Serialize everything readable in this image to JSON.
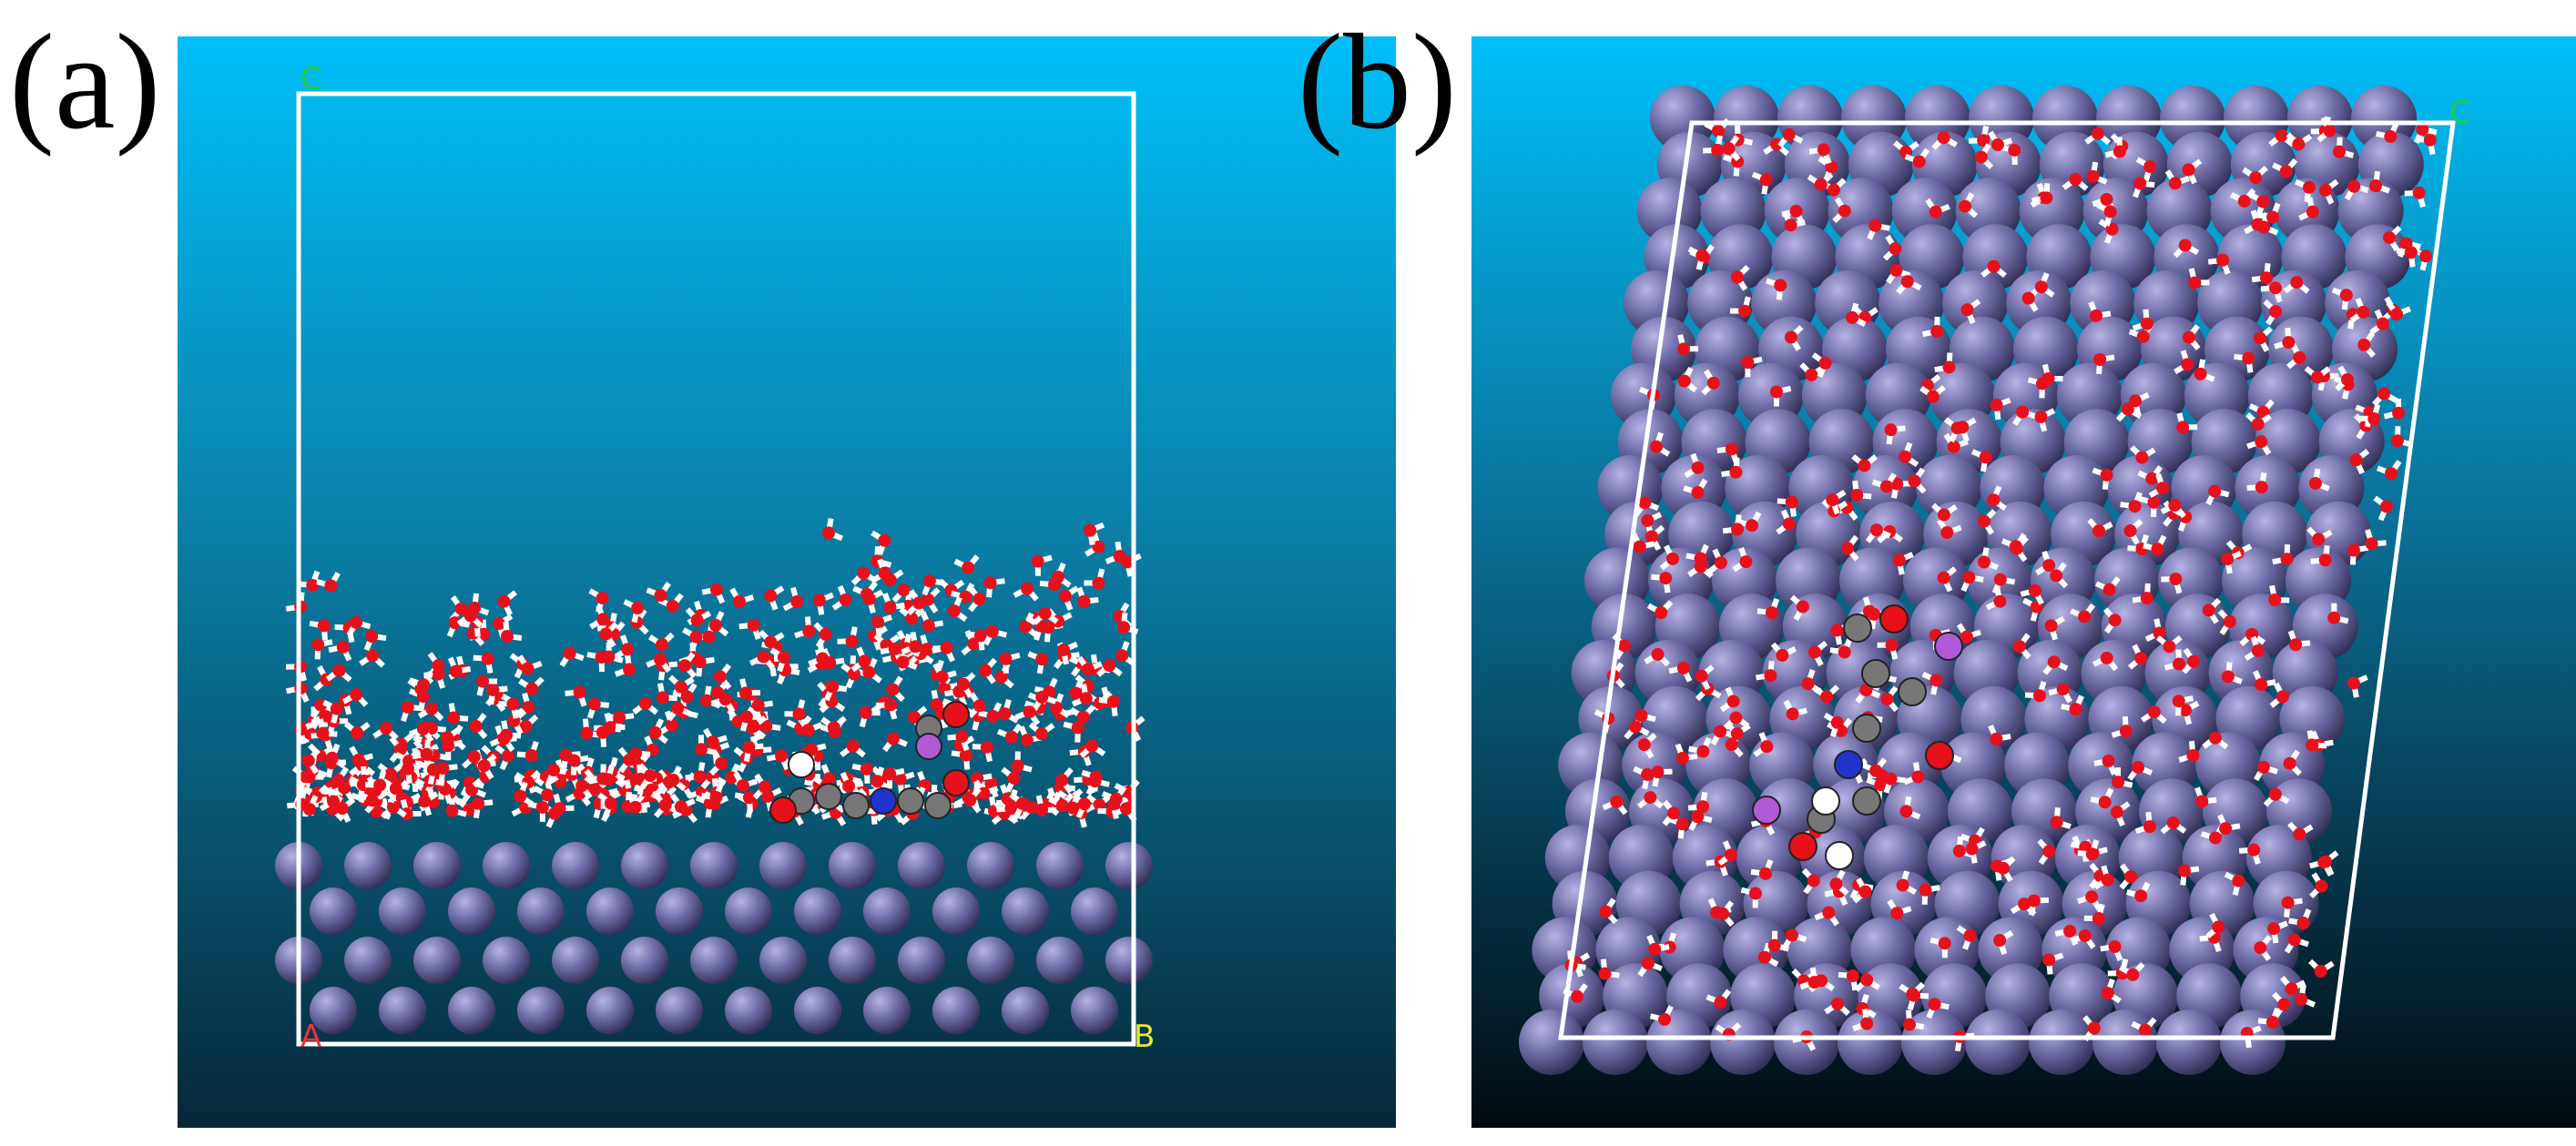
{
  "panel_a": {
    "label": "(a)",
    "axis_c": "C",
    "axis_a": "A",
    "axis_b": "B"
  },
  "panel_b": {
    "label": "(b)",
    "axis_c": "C"
  }
}
